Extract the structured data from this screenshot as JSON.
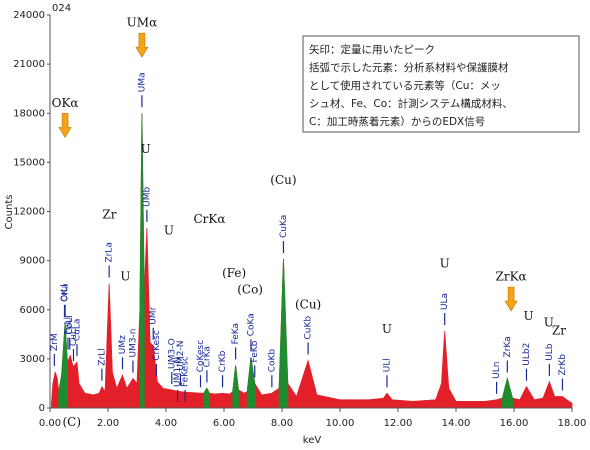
{
  "chart_data": {
    "type": "area",
    "title": "024",
    "xlabel": "keV",
    "ylabel": "Counts",
    "xlim": [
      0,
      18
    ],
    "xticks": [
      {
        "value": 0,
        "label": "0.00"
      },
      {
        "value": 2,
        "label": "2.00"
      },
      {
        "value": 4,
        "label": "4.00"
      },
      {
        "value": 6,
        "label": "6.00"
      },
      {
        "value": 8,
        "label": "8.00"
      },
      {
        "value": 10,
        "label": "10.00"
      },
      {
        "value": 12,
        "label": "12.00"
      },
      {
        "value": 14,
        "label": "14.00"
      },
      {
        "value": 16,
        "label": "16.00"
      },
      {
        "value": 18,
        "label": "18.00"
      }
    ],
    "ylim": [
      0,
      24000
    ],
    "yticks": [
      0,
      3000,
      6000,
      9000,
      12000,
      15000,
      18000,
      21000,
      24000
    ],
    "grid": false,
    "x": [
      0.05,
      0.1,
      0.18,
      0.25,
      0.3,
      0.4,
      0.52,
      0.6,
      0.7,
      0.8,
      0.93,
      1.0,
      1.2,
      1.5,
      1.7,
      1.79,
      1.9,
      2.04,
      2.15,
      2.3,
      2.5,
      2.65,
      2.86,
      3.0,
      3.1,
      3.17,
      3.25,
      3.34,
      3.45,
      3.56,
      3.7,
      3.9,
      4.2,
      4.5,
      4.8,
      5.2,
      5.3,
      5.41,
      5.5,
      5.7,
      5.95,
      6.2,
      6.3,
      6.4,
      6.5,
      6.7,
      6.8,
      6.93,
      7.06,
      7.3,
      7.65,
      7.9,
      8.05,
      8.2,
      8.5,
      8.9,
      9.2,
      10,
      11,
      11.5,
      11.62,
      11.8,
      12.5,
      13.3,
      13.5,
      13.61,
      13.75,
      14,
      15,
      15.4,
      15.6,
      15.77,
      15.95,
      16.2,
      16.43,
      16.7,
      17,
      17.22,
      17.4,
      17.67,
      17.9,
      18
    ],
    "series": [
      {
        "color": "#e3202a",
        "values": [
          300,
          1500,
          2200,
          1800,
          1000,
          2000,
          5200,
          2800,
          3200,
          2500,
          2800,
          1500,
          900,
          800,
          900,
          1300,
          1000,
          7600,
          2200,
          1200,
          2000,
          1200,
          1800,
          1500,
          6000,
          18000,
          7000,
          11000,
          4000,
          3800,
          1600,
          1200,
          1100,
          1000,
          950,
          900,
          900,
          1200,
          900,
          850,
          900,
          850,
          1000,
          2600,
          1100,
          900,
          1000,
          3100,
          1500,
          800,
          900,
          1200,
          9100,
          1500,
          700,
          2900,
          800,
          500,
          500,
          600,
          900,
          500,
          400,
          500,
          1500,
          4700,
          1200,
          400,
          400,
          500,
          600,
          1800,
          600,
          500,
          1300,
          500,
          600,
          1600,
          700,
          700,
          400,
          300
        ]
      },
      {
        "color": "#1f8c2f",
        "values": [
          null,
          null,
          null,
          null,
          1000,
          2000,
          5200,
          2800,
          null,
          null,
          null,
          null,
          null,
          null,
          null,
          null,
          null,
          null,
          null,
          null,
          null,
          null,
          null,
          null,
          6000,
          18000,
          7000,
          null,
          null,
          null,
          null,
          null,
          null,
          null,
          null,
          null,
          900,
          1200,
          900,
          null,
          null,
          null,
          1000,
          2600,
          1100,
          null,
          1000,
          3100,
          1500,
          null,
          null,
          1200,
          9100,
          1500,
          null,
          null,
          null,
          null,
          null,
          null,
          null,
          null,
          null,
          null,
          null,
          null,
          null,
          null,
          null,
          null,
          600,
          1800,
          600,
          null,
          null,
          null,
          null,
          null,
          null,
          null,
          null,
          null
        ]
      }
    ],
    "peak_labels": [
      {
        "label": "ZrM",
        "x": 0.15
      },
      {
        "label": "CrLl",
        "x": 0.5
      },
      {
        "label": "OKa",
        "x": 0.52
      },
      {
        "label": "FeLl",
        "x": 0.62
      },
      {
        "label": "CoLl",
        "x": 0.68
      },
      {
        "label": "CuLl",
        "x": 0.81
      },
      {
        "label": "CuLa",
        "x": 0.93
      },
      {
        "label": "ZrLl",
        "x": 1.79
      },
      {
        "label": "ZrLa",
        "x": 2.04
      },
      {
        "label": "UMz",
        "x": 2.5
      },
      {
        "label": "UM3-n",
        "x": 2.86
      },
      {
        "label": "UMa",
        "x": 3.17
      },
      {
        "label": "UMb",
        "x": 3.34
      },
      {
        "label": "UMr",
        "x": 3.56
      },
      {
        "label": "CrKesc",
        "x": 3.67
      },
      {
        "label": "UM3-O",
        "x": 4.2
      },
      {
        "label": "UM1-N",
        "x": 4.4
      },
      {
        "label": "UM2-N",
        "x": 4.5
      },
      {
        "label": "FeKesc",
        "x": 4.66
      },
      {
        "label": "CoKesc",
        "x": 5.19
      },
      {
        "label": "CrKa",
        "x": 5.41
      },
      {
        "label": "CrKb",
        "x": 5.95
      },
      {
        "label": "FeKa",
        "x": 6.4
      },
      {
        "label": "CoKa",
        "x": 6.93
      },
      {
        "label": "FeKb",
        "x": 7.06
      },
      {
        "label": "CoKb",
        "x": 7.65
      },
      {
        "label": "CuKa",
        "x": 8.05
      },
      {
        "label": "CuKb",
        "x": 8.9
      },
      {
        "label": "ULl",
        "x": 11.62
      },
      {
        "label": "ULa",
        "x": 13.61
      },
      {
        "label": "ULn",
        "x": 15.4
      },
      {
        "label": "ZrKa",
        "x": 15.77
      },
      {
        "label": "ULb2",
        "x": 16.43
      },
      {
        "label": "ULb",
        "x": 17.22
      },
      {
        "label": "ZrKb",
        "x": 17.67
      }
    ],
    "annotations": [
      {
        "text": "UMα",
        "x": 3.17,
        "y": 23500,
        "arrow": true
      },
      {
        "text": "OKα",
        "x": 0.52,
        "y": 18600,
        "arrow": true
      },
      {
        "text": "Zr",
        "x": 2.05,
        "y": 11800
      },
      {
        "text": "U",
        "x": 2.6,
        "y": 8000
      },
      {
        "text": "U",
        "x": 3.3,
        "y": 15800
      },
      {
        "text": "U",
        "x": 4.1,
        "y": 10800
      },
      {
        "text": "CrKα",
        "x": 5.5,
        "y": 11500
      },
      {
        "text": "(Fe)",
        "x": 6.35,
        "y": 8200
      },
      {
        "text": "(Co)",
        "x": 6.9,
        "y": 7200
      },
      {
        "text": "(Cu)",
        "x": 8.05,
        "y": 13900
      },
      {
        "text": "(Cu)",
        "x": 8.9,
        "y": 6300
      },
      {
        "text": "U",
        "x": 11.62,
        "y": 4800
      },
      {
        "text": "U",
        "x": 13.61,
        "y": 8800
      },
      {
        "text": "ZrKα",
        "x": 15.9,
        "y": 8000,
        "arrow": true
      },
      {
        "text": "U",
        "x": 16.5,
        "y": 5600
      },
      {
        "text": "U",
        "x": 17.2,
        "y": 5200
      },
      {
        "text": "Zr",
        "x": 17.55,
        "y": 4700
      },
      {
        "text": "(C)",
        "x": 0.75,
        "y": -900
      }
    ],
    "note": [
      "矢印：定量に用いたピーク",
      "括弧で示した元素：分析系材料や保護膜材",
      "として使用されている元素等（Cu：メッ",
      "シュ材、Fe、Co：計測システム構成材料、",
      "C：加工時蒸着元素）からのEDX信号"
    ]
  }
}
